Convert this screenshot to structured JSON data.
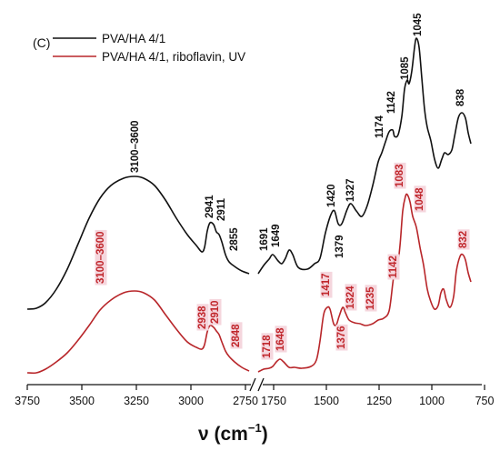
{
  "chart_data": {
    "type": "line",
    "panel_label": "(C)",
    "xlabel_main": "ν (cm",
    "xlabel_exp": "−1",
    "xlabel_close": ")",
    "x_reversed": true,
    "x_break": [
      1800,
      2000
    ],
    "xlim_left_segment": [
      3750,
      2000
    ],
    "xlim_right_segment": [
      1800,
      750
    ],
    "xticks": [
      {
        "value": 3750,
        "label": "3750"
      },
      {
        "value": 3500,
        "label": "3500"
      },
      {
        "value": 3250,
        "label": "3250"
      },
      {
        "value": 3000,
        "label": "3000"
      },
      {
        "value": 2750,
        "label": "2750"
      },
      {
        "value": 1750,
        "label": "1750"
      },
      {
        "value": 1500,
        "label": "1500"
      },
      {
        "value": 1250,
        "label": "1250"
      },
      {
        "value": 1000,
        "label": "1000"
      },
      {
        "value": 750,
        "label": "750"
      }
    ],
    "grid": false,
    "legend_position": "top-left",
    "colors": {
      "series_1": "#111111",
      "series_2": "#b8262a",
      "red_label_bg": "#f5d6dd"
    },
    "series": [
      {
        "name": "PVA/HA 4/1",
        "color": "#111111",
        "peak_labels": [
          "3100–3600",
          "2941",
          "2911",
          "2855",
          "1691",
          "1649",
          "1420",
          "1379",
          "1327",
          "1174",
          "1142",
          "1085",
          "1045",
          "838"
        ]
      },
      {
        "name": "PVA/HA 4/1, riboflavin, UV",
        "color": "#b8262a",
        "peak_labels": [
          "3100–3600",
          "2938",
          "2910",
          "2848",
          "1718",
          "1648",
          "1417",
          "1376",
          "1324",
          "1235",
          "1142",
          "1083",
          "1048",
          "832"
        ]
      }
    ]
  }
}
